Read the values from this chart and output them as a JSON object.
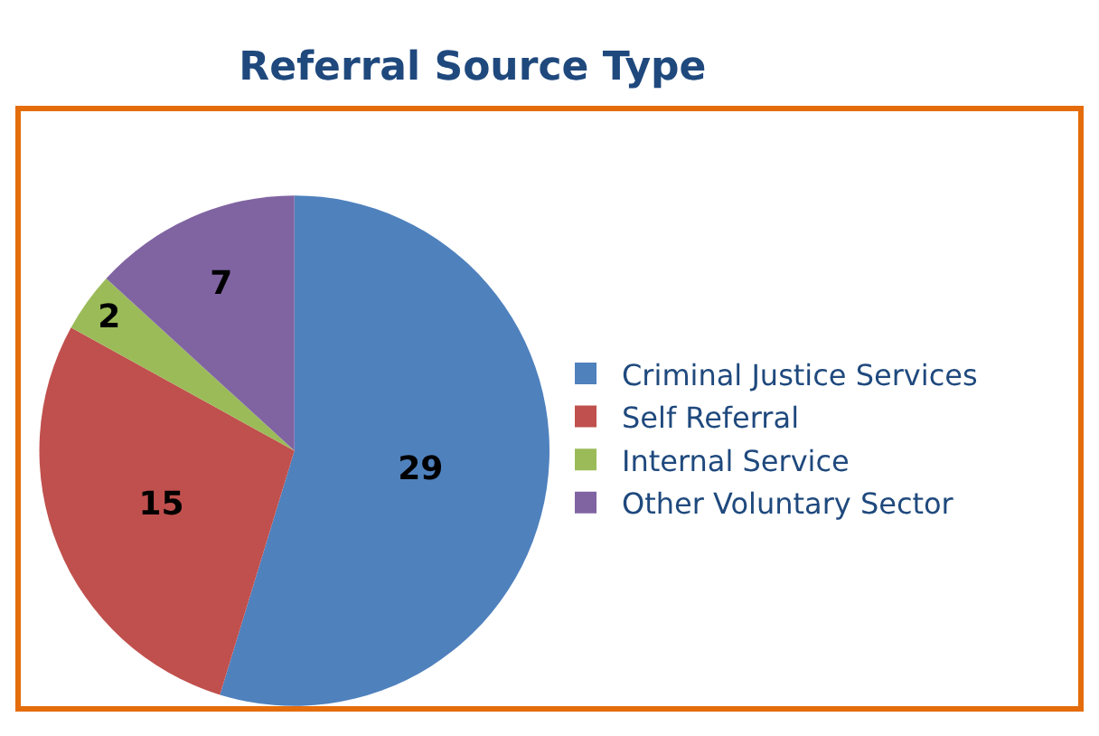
{
  "chart_data": {
    "type": "pie",
    "title": "Referral Source Type",
    "categories": [
      "Criminal Justice Services",
      "Self Referral",
      "Internal Service",
      "Other Voluntary Sector"
    ],
    "values": [
      29,
      15,
      2,
      7
    ],
    "colors": [
      "#4f81bd",
      "#c0504d",
      "#9bbb59",
      "#8064a2"
    ],
    "data_labels": true,
    "legend": "right"
  }
}
